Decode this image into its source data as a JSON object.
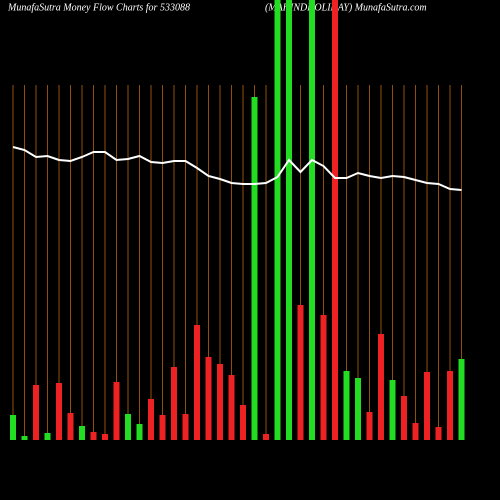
{
  "chart_data": {
    "type": "bar",
    "title": "MunafaSutra  Money Flow  Charts for 533088",
    "subtitle": "(MAHINDHOLIDAY) MunafaSutra.com",
    "ylim": [
      0,
      440
    ],
    "series": [
      {
        "name": "Money flow",
        "colors": [
          "#22dd22",
          "#22dd22",
          "#ee2222",
          "#22dd22",
          "#ee2222",
          "#ee2222",
          "#22dd22",
          "#ee2222",
          "#ee2222",
          "#ee2222",
          "#22dd22",
          "#22dd22",
          "#ee2222",
          "#ee2222",
          "#ee2222",
          "#ee2222",
          "#ee2222",
          "#ee2222",
          "#ee2222",
          "#ee2222",
          "#ee2222",
          "#22dd22",
          "#ee2222",
          "#22dd22",
          "#22dd22",
          "#ee2222",
          "#22dd22",
          "#ee2222",
          "#ee2222",
          "#22dd22",
          "#22dd22",
          "#ee2222",
          "#ee2222",
          "#22dd22",
          "#ee2222",
          "#ee2222",
          "#ee2222",
          "#ee2222",
          "#ee2222",
          "#22dd22"
        ],
        "values": [
          25,
          4,
          55,
          7,
          57,
          27,
          14,
          8,
          6,
          58,
          26,
          16,
          41,
          25,
          73,
          26,
          115,
          83,
          76,
          65,
          35,
          343,
          6,
          440,
          440,
          135,
          440,
          125,
          440,
          69,
          62,
          28,
          106,
          60,
          44,
          17,
          68,
          13,
          69,
          81
        ]
      },
      {
        "name": "Price",
        "color": "#ffffff",
        "values": [
          293,
          290,
          283,
          284,
          280,
          279,
          283,
          288,
          288,
          280,
          281,
          284,
          278,
          277,
          279,
          279,
          272,
          264,
          261,
          257,
          256,
          256,
          257,
          263,
          280,
          268,
          280,
          274,
          262,
          262,
          267,
          264,
          262,
          264,
          263,
          260,
          257,
          256,
          251,
          250
        ]
      }
    ]
  }
}
